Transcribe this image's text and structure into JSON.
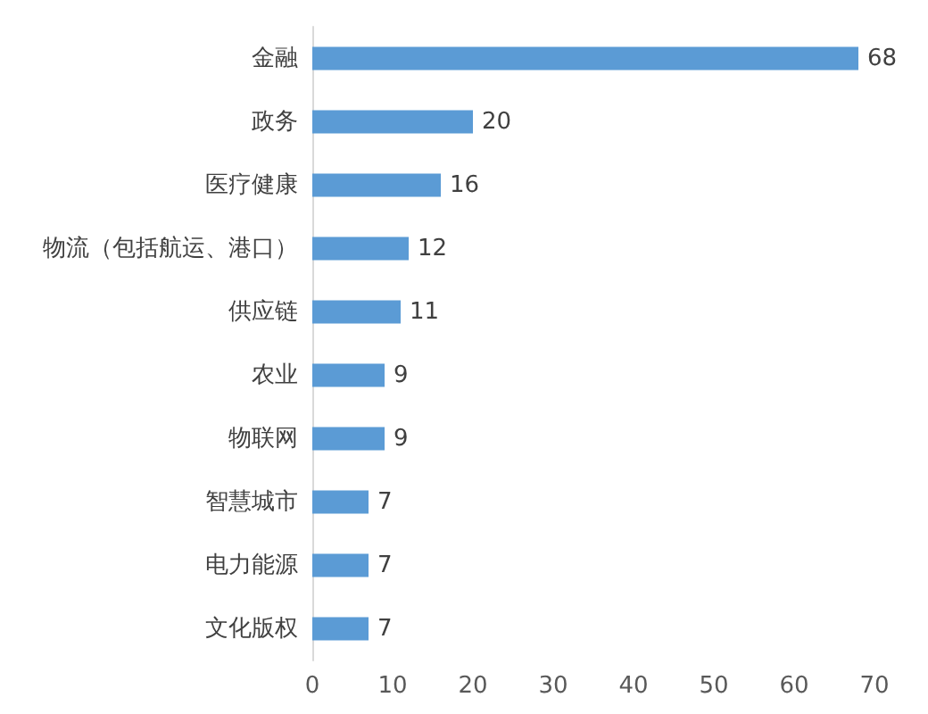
{
  "chart_data": {
    "type": "bar",
    "orientation": "horizontal",
    "categories": [
      "金融",
      "政务",
      "医疗健康",
      "物流（包括航运、港口）",
      "供应链",
      "农业",
      "物联网",
      "智慧城市",
      "电力能源",
      "文化版权"
    ],
    "values": [
      68,
      20,
      16,
      12,
      11,
      9,
      9,
      7,
      7,
      7
    ],
    "color": "#5b9bd5",
    "data_labels": true,
    "xlim": [
      0,
      70
    ],
    "xticks": [
      0,
      10,
      20,
      30,
      40,
      50,
      60,
      70
    ],
    "grid": false
  }
}
